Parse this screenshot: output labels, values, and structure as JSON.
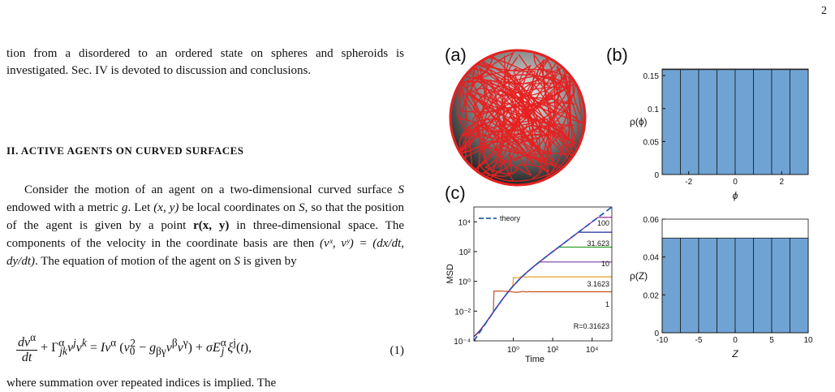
{
  "page_number": "2",
  "intro_paragraph": "tion from a disordered to an ordered state on spheres and spheroids is investigated. Sec. IV is devoted to discussion and conclusions.",
  "section_heading": "II.   ACTIVE AGENTS ON CURVED SURFACES",
  "body_paragraph": {
    "t1": "Consider the motion of an agent on a two-dimensional curved surface ",
    "t2": " endowed with a metric ",
    "t3": ". Let ",
    "t4": " be local coordinates on ",
    "t5": ", so that the position of the agent is given by a point ",
    "t6": " in three-dimensional space. The components of the velocity in the coordinate basis are then ",
    "t7": ". The equation of motion of the agent on ",
    "t8": " is given by",
    "S": "S",
    "g": "g",
    "xy": "(x, y)",
    "rxy": "r(x, y)",
    "vel": "(vˣ, vʸ) = (dx/dt, dy/dt)"
  },
  "equation": {
    "number": "(1)"
  },
  "trailing_text": "where summation over repeated indices is implied. The",
  "figure": {
    "panel_labels": [
      "(a)",
      "(b)",
      "(c)"
    ],
    "panel_b_ylabel": "ρ(ϕ)",
    "panel_b_xlabel": "ϕ",
    "panel_z_ylabel": "ρ(Z)",
    "panel_z_xlabel": "Z",
    "panel_c_ylabel": "MSD",
    "panel_c_xlabel": "Time",
    "legend_label": "theory",
    "curve_labels": [
      "100",
      "31.623",
      "10",
      "3.1623",
      "1",
      "R=0.31623"
    ],
    "colors": {
      "bars": "#6fa3d4",
      "trajectory": "#e62020",
      "theory": "#2a5ab0",
      "curves": [
        "#8b1a8b",
        "#1f2a9c",
        "#2aa02a",
        "#7a3fa8",
        "#e0a020",
        "#c8501c"
      ]
    }
  },
  "chart_data": [
    {
      "type": "bar",
      "panel": "(b)",
      "xlabel": "ϕ",
      "ylabel": "ρ(ϕ)",
      "xlim": [
        -3.1416,
        3.1416
      ],
      "ylim": [
        0,
        0.16
      ],
      "xticks": [
        -2,
        0,
        2
      ],
      "yticks": [
        0,
        0.05,
        0.1,
        0.15
      ],
      "ytick_labels": [
        "0",
        "0.05",
        "0.1",
        "0.15"
      ],
      "bin_edges": [
        -3.1416,
        -2.3562,
        -1.5708,
        -0.7854,
        0,
        0.7854,
        1.5708,
        2.3562,
        3.1416
      ],
      "values": [
        0.159,
        0.159,
        0.159,
        0.159,
        0.159,
        0.159,
        0.159,
        0.159
      ]
    },
    {
      "type": "bar",
      "panel": "Z",
      "xlabel": "Z",
      "ylabel": "ρ(Z)",
      "xlim": [
        -10,
        10
      ],
      "ylim": [
        0,
        0.06
      ],
      "xticks": [
        -10,
        -5,
        0,
        5,
        10
      ],
      "yticks": [
        0,
        0.02,
        0.04,
        0.06
      ],
      "ytick_labels": [
        "0",
        "0.02",
        "0.04",
        "0.06"
      ],
      "bin_edges": [
        -10,
        -7.5,
        -5,
        -2.5,
        0,
        2.5,
        5,
        7.5,
        10
      ],
      "values": [
        0.05,
        0.05,
        0.05,
        0.05,
        0.05,
        0.05,
        0.05,
        0.05
      ]
    },
    {
      "type": "line",
      "panel": "(c)",
      "xlabel": "Time",
      "ylabel": "MSD",
      "xscale": "log",
      "yscale": "log",
      "xlim": [
        0.01,
        100000
      ],
      "ylim": [
        0.0001,
        100000
      ],
      "xtick_labels": [
        "10⁰",
        "10²",
        "10⁴"
      ],
      "ytick_labels": [
        "10⁻⁴",
        "10⁻²",
        "10⁰",
        "10²",
        "10⁴"
      ],
      "series": [
        {
          "name": "R=0.31623",
          "plateau": 0.2
        },
        {
          "name": "1",
          "plateau": 2
        },
        {
          "name": "3.1623",
          "plateau": 20
        },
        {
          "name": "10",
          "plateau": 200
        },
        {
          "name": "31.623",
          "plateau": 2000
        },
        {
          "name": "100",
          "plateau": 20000
        },
        {
          "name": "theory",
          "plateau": null
        }
      ],
      "legend": "top-left"
    }
  ]
}
